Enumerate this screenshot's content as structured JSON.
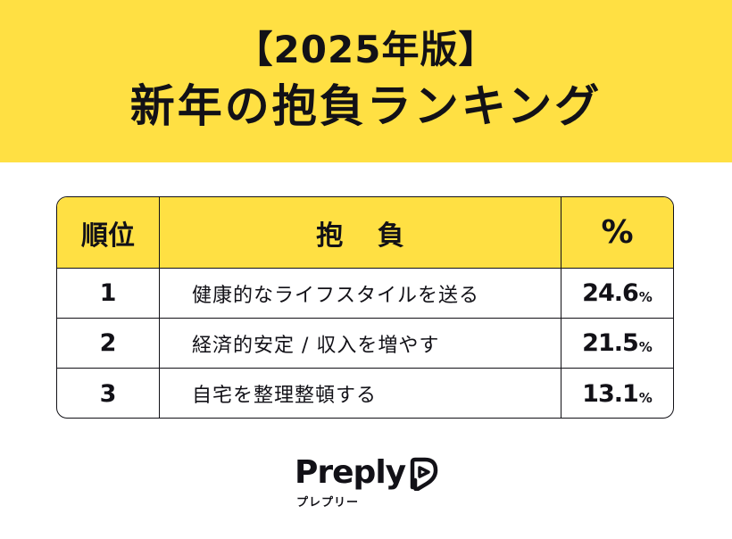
{
  "banner": {
    "line1": "【2025年版】",
    "line2": "新年の抱負ランキング"
  },
  "table": {
    "headers": {
      "rank": "順位",
      "goal": "抱 負",
      "percent": "%"
    },
    "rows": [
      {
        "rank": "1",
        "goal": "健康的なライフスタイルを送る",
        "value": "24.6",
        "unit": "%"
      },
      {
        "rank": "2",
        "goal": "経済的安定 / 収入を増やす",
        "value": "21.5",
        "unit": "%"
      },
      {
        "rank": "3",
        "goal": "自宅を整理整頓する",
        "value": "13.1",
        "unit": "%"
      }
    ]
  },
  "brand": {
    "name": "Preply",
    "kana": "プレプリー",
    "logo_icon": "preply-heart-icon"
  },
  "colors": {
    "accent": "#ffe043",
    "ink": "#121117",
    "background": "#ffffff"
  }
}
